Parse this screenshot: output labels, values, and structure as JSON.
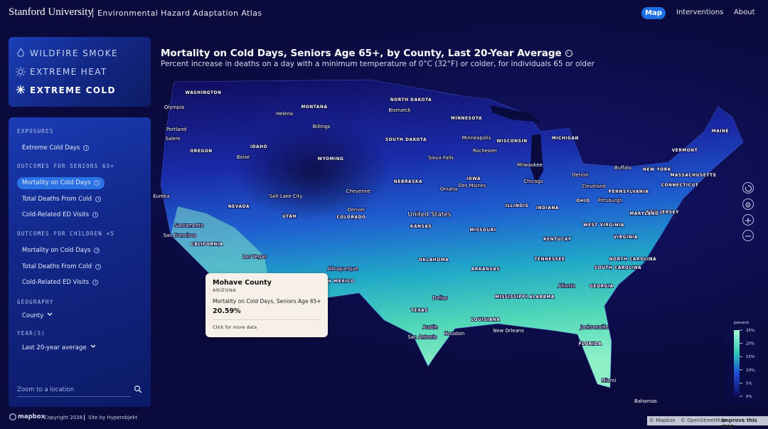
{
  "header": {
    "logo": "Stanford University",
    "title": "Environmental Hazard Adaptation Atlas",
    "nav": [
      "Map",
      "Interventions",
      "About"
    ]
  },
  "hazards": [
    "WILDFIRE SMOKE",
    "EXTREME HEAT",
    "EXTREME COLD"
  ],
  "sidebar": {
    "sections": [
      {
        "title": "EXPOSURES",
        "items": [
          "Extreme Cold Days"
        ]
      },
      {
        "title": "OUTCOMES FOR SENIORS 65+",
        "items": [
          "Mortality on Cold Days",
          "Total Deaths From Cold",
          "Cold-Related ED Visits"
        ]
      },
      {
        "title": "OUTCOMES FOR CHILDREN <5",
        "items": [
          "Mortality on Cold Days",
          "Total Deaths From Cold",
          "Cold-Related ED Visits"
        ]
      }
    ],
    "geography": {
      "label": "GEOGRAPHY",
      "value": "County"
    },
    "years": {
      "label": "YEAR(S)",
      "value": "Last 20-year average"
    },
    "search_placeholder": "Zoom to a location"
  },
  "map": {
    "title": "Mortality on Cold Days, Seniors Age 65+, by County, Last 20-Year Average",
    "subtitle": "Percent increase in deaths on a day with a minimum temperature of 0°C (32°F) or colder, for individuals 65 or older",
    "labels": [
      "WASHINGTON",
      "Olympia",
      "MONTANA",
      "Helena",
      "Billings",
      "NORTH DAKOTA",
      "Bismarck",
      "MINNESOTA",
      "Minneapolis",
      "Rochester",
      "WISCONSIN",
      "MICHIGAN",
      "Portland",
      "Salem",
      "OREGON",
      "IDAHO",
      "Boise",
      "WYOMING",
      "SOUTH DAKOTA",
      "Sioux Falls",
      "Milwaukee",
      "Detroit",
      "Buffalo",
      "NEW YORK",
      "MAINE",
      "VERMONT",
      "MASSACHUSETTS",
      "IOWA",
      "Des Moines",
      "Chicago",
      "NEBRASKA",
      "Omaha",
      "Cheyenne",
      "Salt Lake City",
      "Eureka",
      "NEVADA",
      "Cleveland",
      "PENNSYLVANIA",
      "CONNECTICUT",
      "Pittsburgh",
      "OHIO",
      "INDIANA",
      "ILLINOIS",
      "Denver",
      "COLORADO",
      "UTAH",
      "United States",
      "KANSAS",
      "MISSOURI",
      "NEW JERSEY",
      "MARYLAND",
      "Sacramento",
      "San Francisco",
      "CALIFORNIA",
      "WEST VIRGINIA",
      "VIRGINIA",
      "KENTUCKY",
      "Las Vegas",
      "OKLAHOMA",
      "TENNESSEE",
      "NORTH CAROLINA",
      "Albuquerque",
      "ARKANSAS",
      "SOUTH CAROLINA",
      "NEW MEXICO",
      "Atlanta",
      "ALABAMA",
      "MISSISSIPPI",
      "GEORGIA",
      "Dallas",
      "TEXAS",
      "LOUISIANA",
      "Jacksonville",
      "Austin",
      "Houston",
      "New Orleans",
      "San Antonio",
      "FLORIDA",
      "Miami",
      "Bahamas"
    ]
  },
  "tooltip": {
    "county": "Mohave County",
    "state": "ARIZONA",
    "metric": "Mortality on Cold Days, Seniors Age 65+",
    "value": "20.59%",
    "link": "Click for more data"
  },
  "legend": {
    "title": "percent",
    "range": [
      0,
      25
    ],
    "ticks": [
      {
        "value": 25,
        "label": "25%"
      },
      {
        "value": 20,
        "label": "20%"
      },
      {
        "value": 15,
        "label": "15%"
      },
      {
        "value": 10,
        "label": "10%"
      },
      {
        "value": 5,
        "label": "5%"
      },
      {
        "value": 0,
        "label": "0%"
      }
    ]
  },
  "footer": {
    "brand": "mapbox",
    "copyright": "Copyright 2026",
    "credit": "Site by Hyperobjekt",
    "attribution": [
      "© Mapbox",
      "© OpenStreetMap",
      "Improve this map"
    ]
  }
}
